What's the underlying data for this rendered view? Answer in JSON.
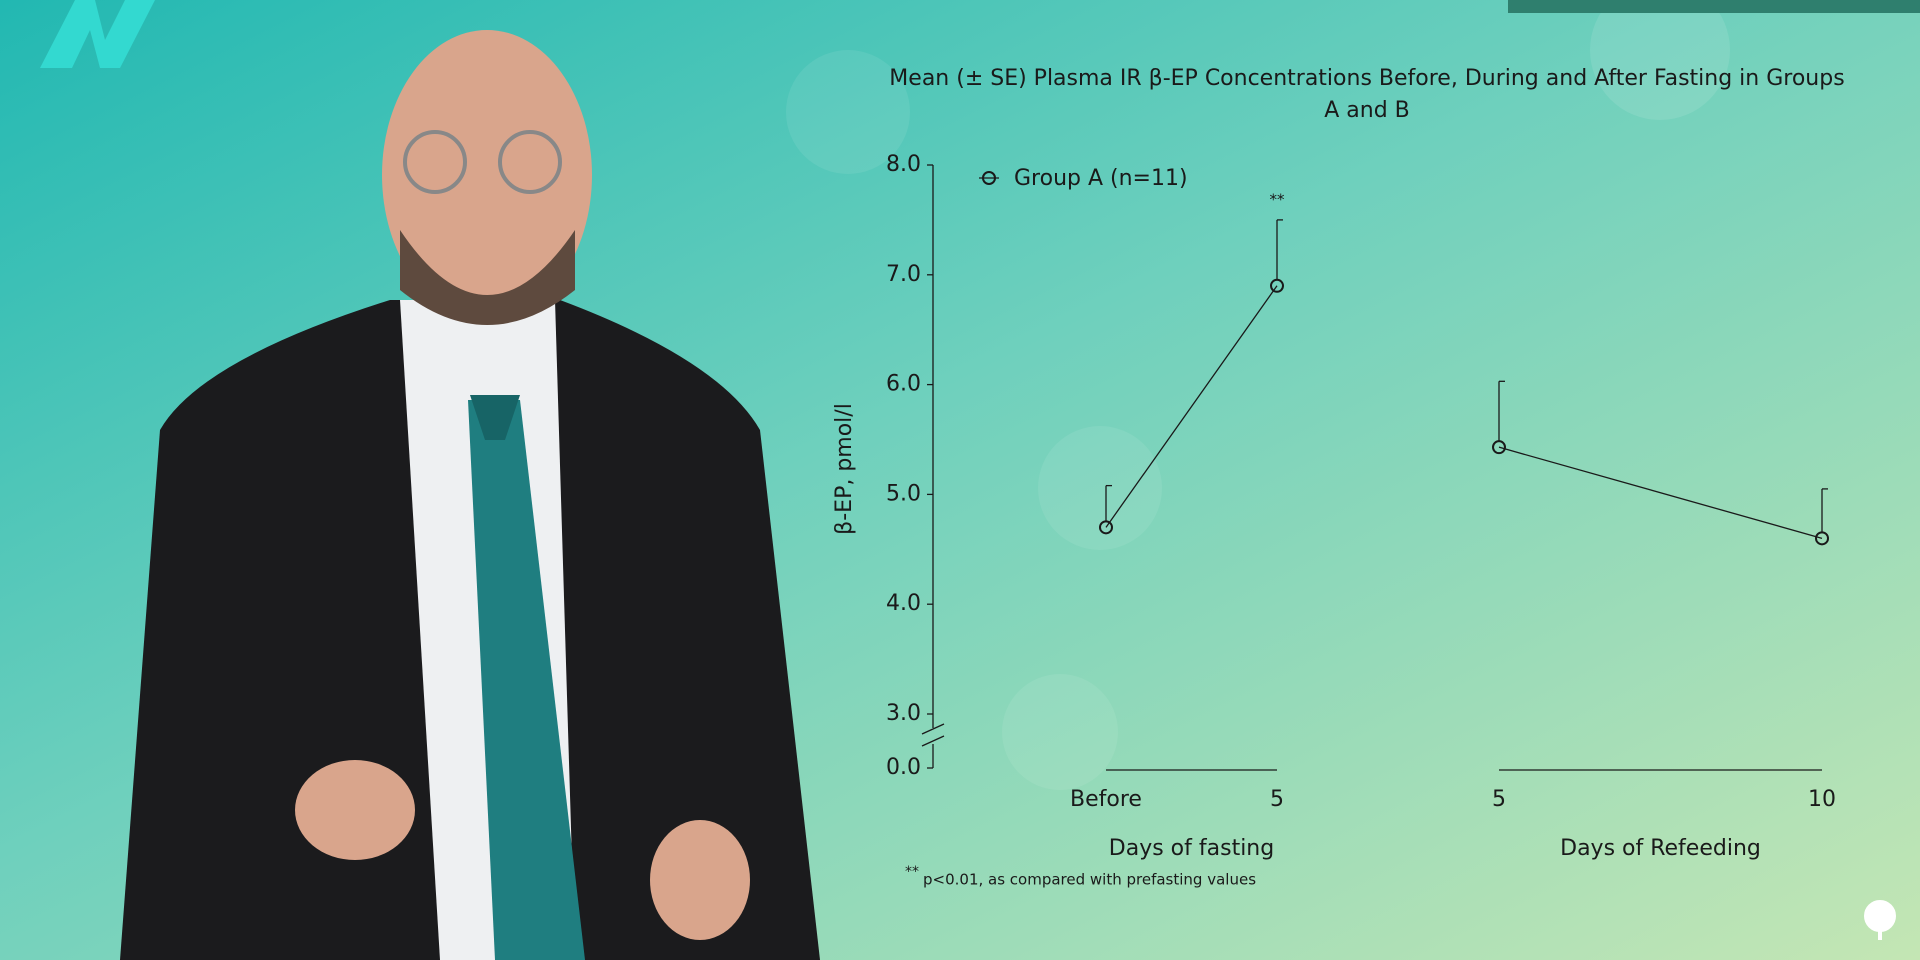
{
  "chart_data": {
    "type": "line",
    "title": "Mean (± SE) Plasma IR β-EP Concentrations Before, During and After Fasting in Groups A and B",
    "y_label": "β-EP, pmol/l",
    "categories": [
      "Before",
      "5",
      null,
      "5",
      "10"
    ],
    "x_groups": [
      "Days of fasting",
      "Days of Refeeding"
    ],
    "series": [
      {
        "name": "Group A (n=11)",
        "color": "#1a1a1a",
        "values": [
          4.7,
          6.9,
          null,
          5.43,
          4.6
        ],
        "errors": [
          0.38,
          0.6,
          null,
          0.6,
          0.45
        ]
      }
    ],
    "ylim": [
      3,
      8
    ],
    "axis_break": true,
    "yticks": [
      {
        "value": 0,
        "label": "0.0"
      },
      {
        "value": 3,
        "label": "3.0"
      },
      {
        "value": 4,
        "label": "4.0"
      },
      {
        "value": 5,
        "label": "5.0"
      },
      {
        "value": 6,
        "label": "6.0"
      },
      {
        "value": 7,
        "label": "7.0"
      },
      {
        "value": 8,
        "label": "8.0"
      }
    ],
    "annotations": [
      "**"
    ],
    "footnote": {
      "marker": "**",
      "text": "p<0.01, as compared with prefasting values"
    },
    "legend": "top-left"
  }
}
